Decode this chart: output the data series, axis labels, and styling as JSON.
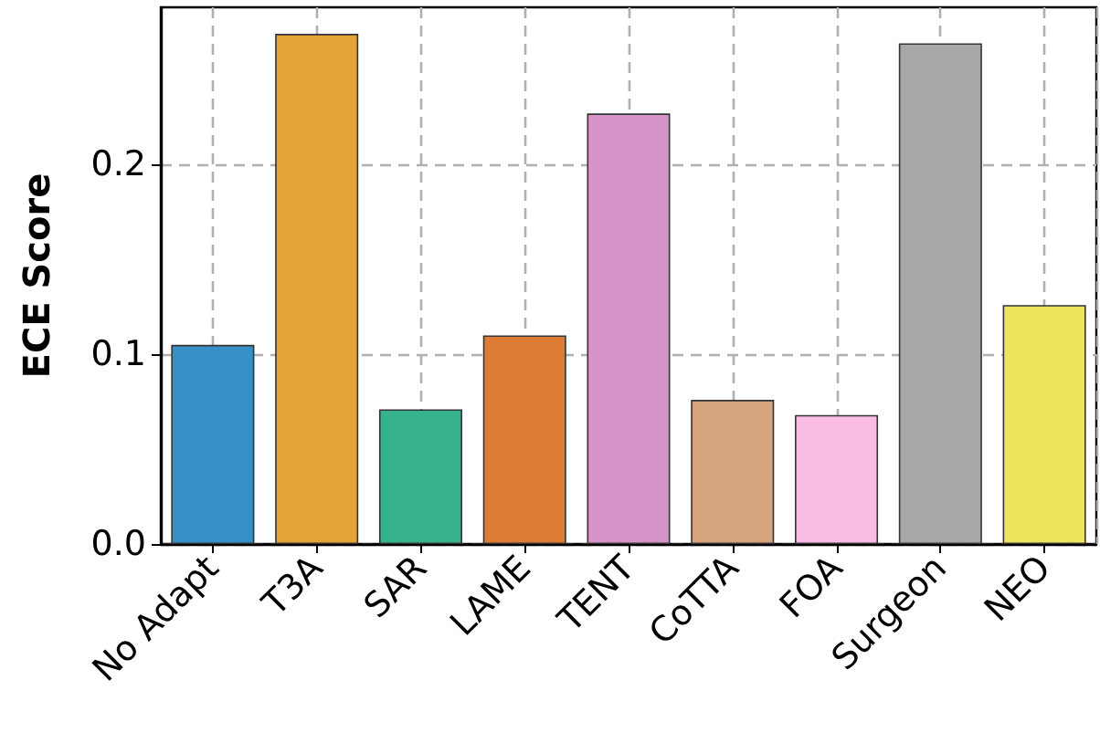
{
  "chart_data": {
    "type": "bar",
    "ylabel": "ECE Score",
    "categories": [
      "No Adapt",
      "T3A",
      "SAR",
      "LAME",
      "TENT",
      "CoTTA",
      "FOA",
      "Surgeon",
      "NEO"
    ],
    "values": [
      0.105,
      0.269,
      0.071,
      0.11,
      0.227,
      0.076,
      0.068,
      0.264,
      0.126
    ],
    "colors": [
      "#3590c6",
      "#e4a336",
      "#37b28e",
      "#de7c35",
      "#d693c7",
      "#d5a47d",
      "#fabce5",
      "#a8a8a8",
      "#eee55e"
    ],
    "ylim": [
      0,
      0.283
    ],
    "yticks": [
      {
        "value": 0,
        "label": "0.0"
      },
      0.1,
      0.2
    ],
    "grid": true
  }
}
